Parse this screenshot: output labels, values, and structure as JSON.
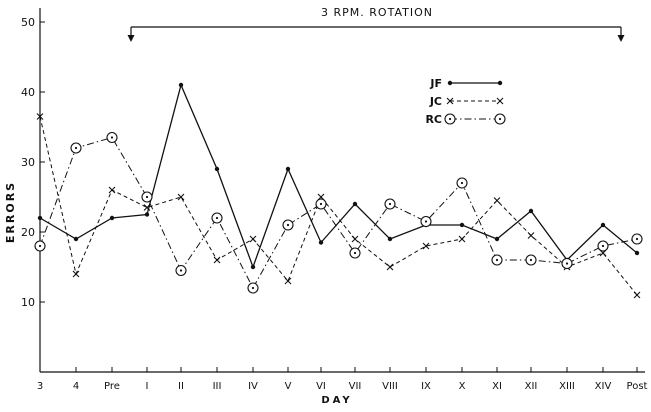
{
  "chart_data": {
    "type": "line",
    "title": "",
    "annotation": "3 RPM. ROTATION",
    "xlabel": "DAY",
    "ylabel": "ERRORS",
    "ylim": [
      0,
      52
    ],
    "yticks": [
      10,
      20,
      30,
      40,
      50
    ],
    "categories": [
      "3",
      "4",
      "Pre",
      "I",
      "II",
      "III",
      "IV",
      "V",
      "VI",
      "VII",
      "VIII",
      "IX",
      "X",
      "XI",
      "XII",
      "XIII",
      "XIV",
      "Post"
    ],
    "rotation_start": "I",
    "rotation_end": "XIV",
    "legend_position": "upper-right",
    "series": [
      {
        "name": "JF",
        "marker": "dot",
        "dash": "solid",
        "values": [
          22,
          19,
          22,
          22.5,
          41,
          29,
          15,
          29,
          18.5,
          24,
          19,
          21,
          21,
          19,
          23,
          16,
          21,
          17
        ]
      },
      {
        "name": "JC",
        "marker": "x",
        "dash": "dashed",
        "values": [
          36.5,
          14,
          26,
          23.5,
          25,
          16,
          19,
          13,
          25,
          19,
          15,
          18,
          19,
          24.5,
          19.5,
          15,
          17,
          11
        ]
      },
      {
        "name": "RC",
        "marker": "circle",
        "dash": "dashdot",
        "values": [
          18,
          32,
          33.5,
          25,
          14.5,
          22,
          12,
          21,
          24,
          17,
          24,
          21.5,
          27,
          16,
          16,
          15.5,
          18,
          19
        ]
      }
    ]
  }
}
